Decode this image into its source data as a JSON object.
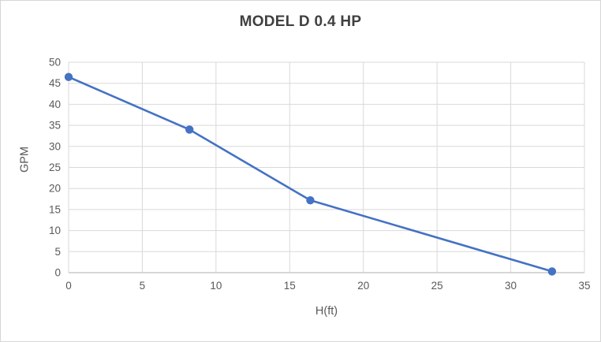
{
  "chart_data": {
    "type": "line",
    "title": "MODEL D 0.4 HP",
    "xlabel": "H(ft)",
    "ylabel": "GPM",
    "x": [
      0,
      8.2,
      16.4,
      32.8
    ],
    "y": [
      46.5,
      34,
      17.2,
      0.3
    ],
    "xlim": [
      0,
      35
    ],
    "ylim": [
      0,
      50
    ],
    "x_ticks": [
      0,
      5,
      10,
      15,
      20,
      25,
      30,
      35
    ],
    "y_ticks": [
      0,
      5,
      10,
      15,
      20,
      25,
      30,
      35,
      40,
      45,
      50
    ],
    "grid": true,
    "legend_position": "none",
    "colors": {
      "line": "#4472C4",
      "marker": "#4472C4",
      "grid": "#D9D9D9",
      "axis": "#BFBFBF",
      "tick_text": "#595959",
      "title_text": "#404040",
      "axis_label_text": "#595959"
    }
  }
}
